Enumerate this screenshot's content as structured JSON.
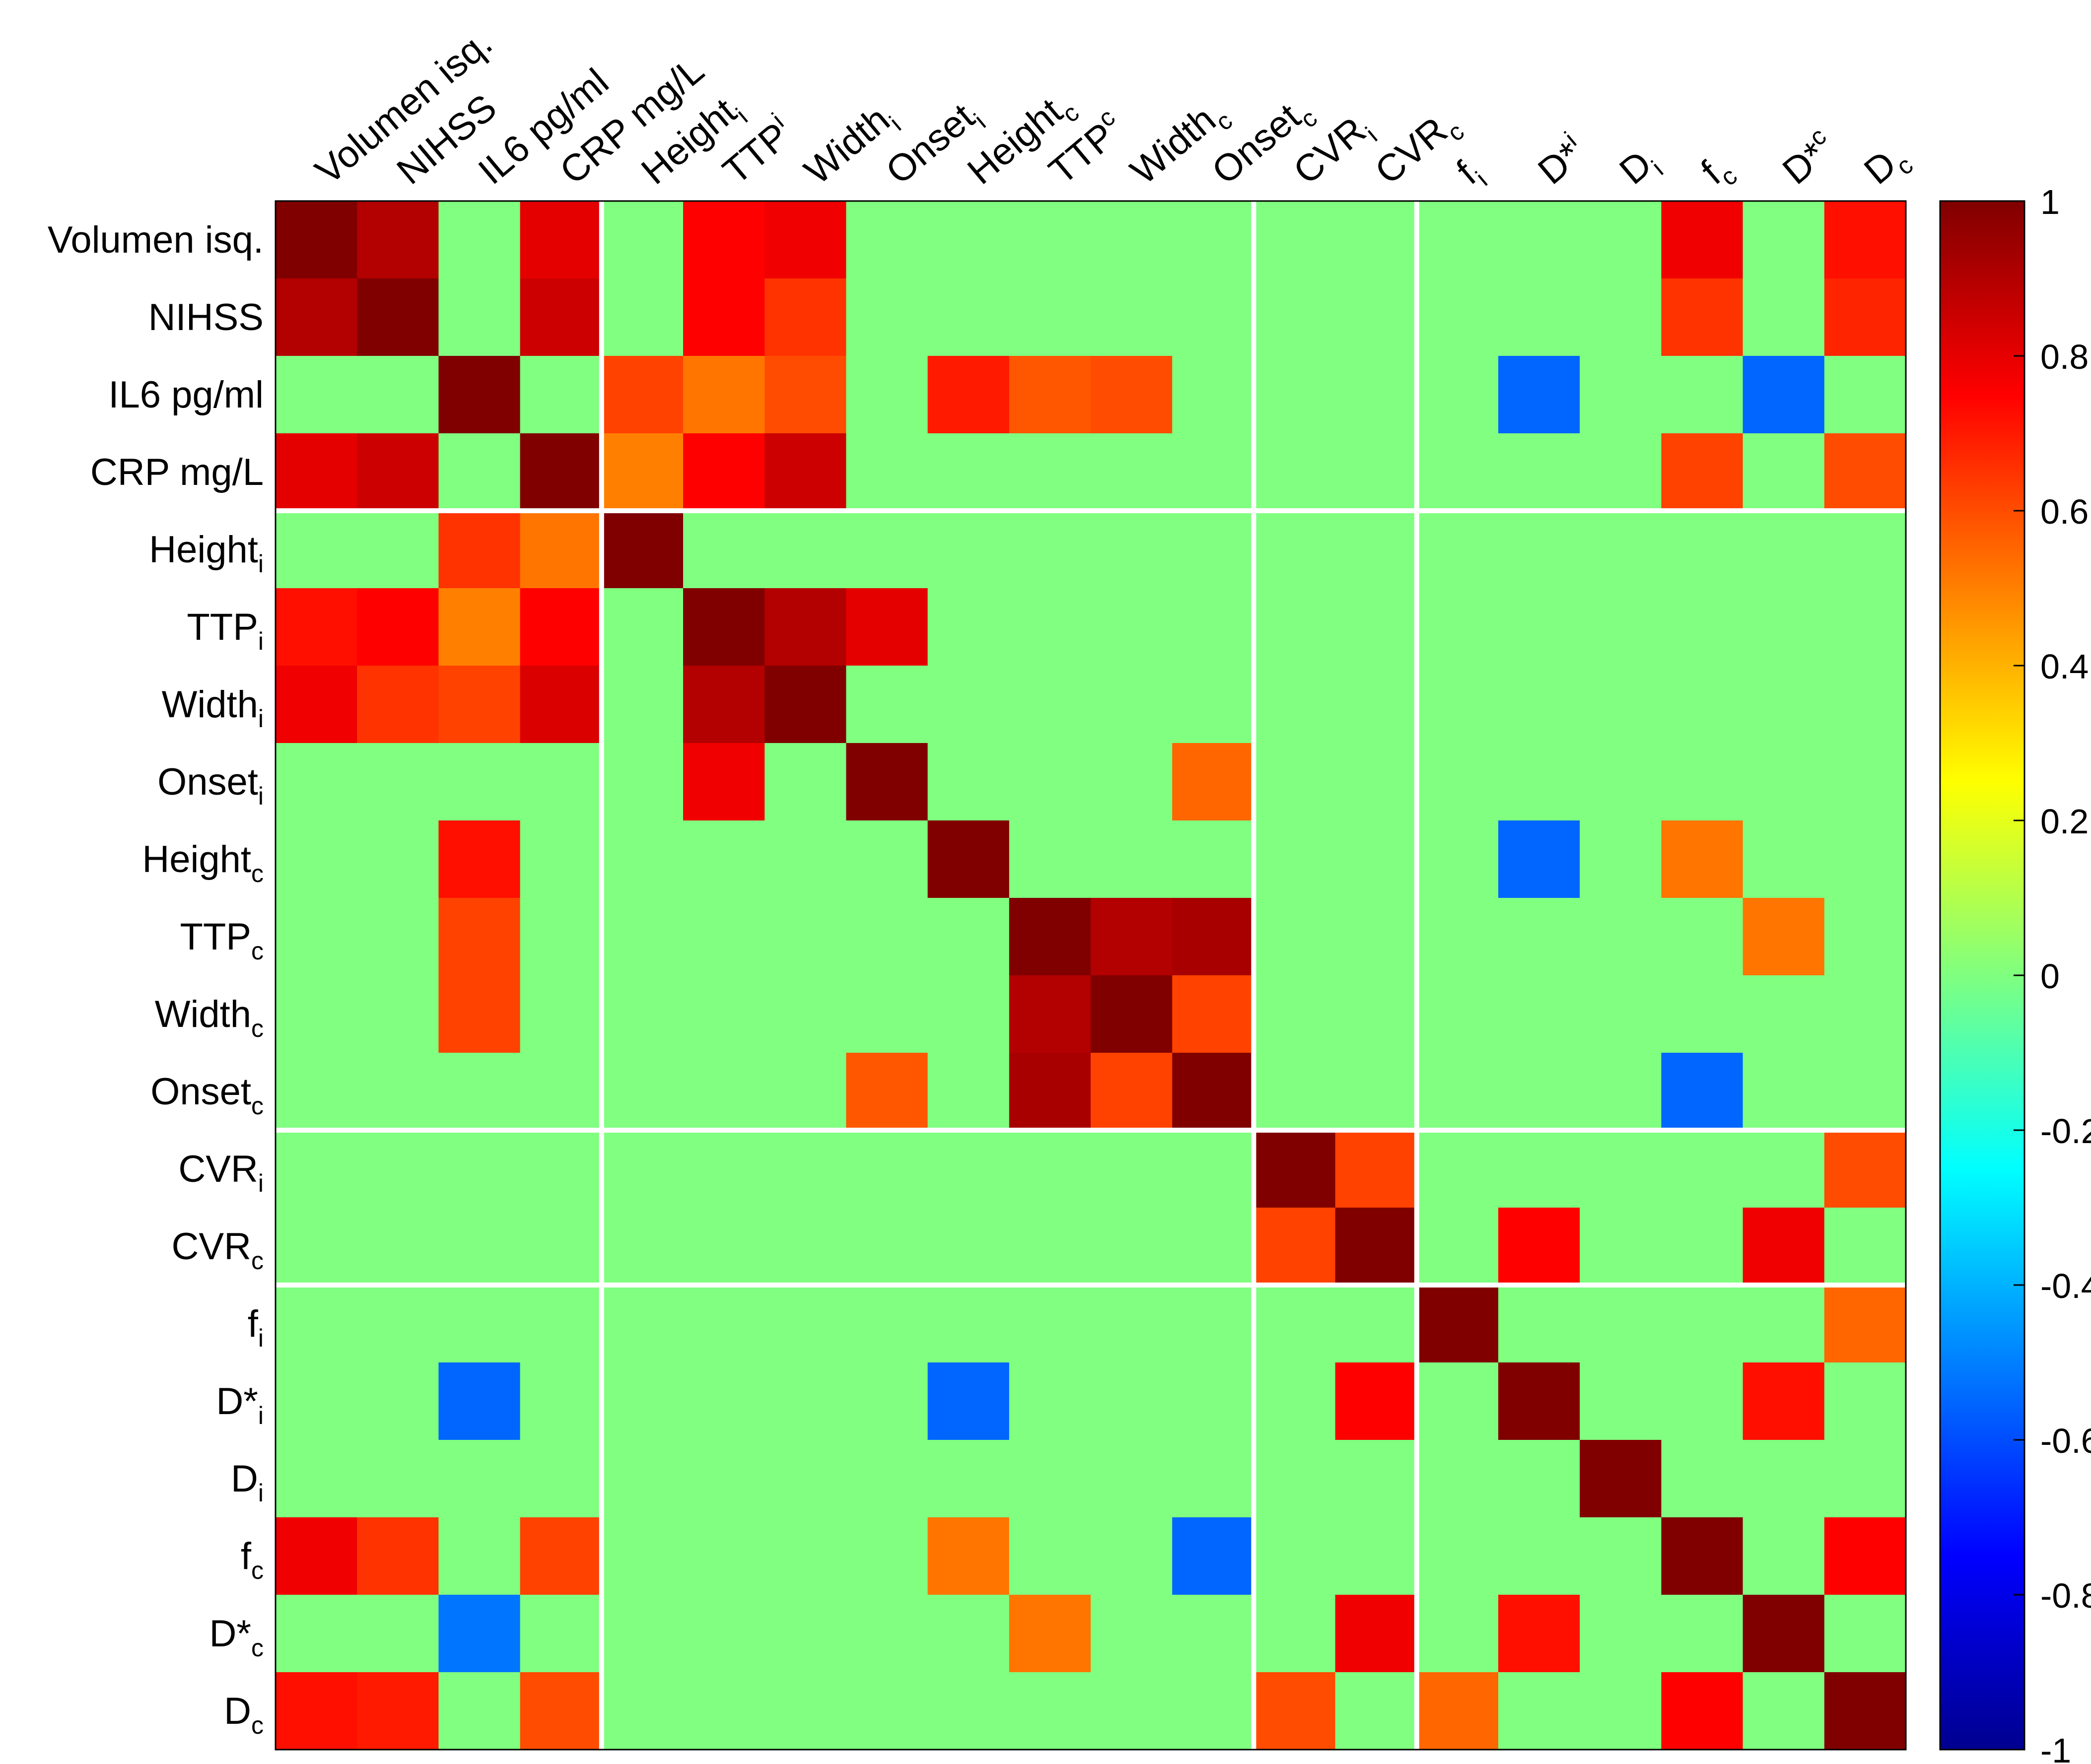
{
  "chart_data": {
    "type": "heatmap",
    "title": "",
    "xlabel": "",
    "ylabel": "",
    "labels": [
      {
        "base": "Volumen isq.",
        "sub": "",
        "sup": ""
      },
      {
        "base": "NIHSS",
        "sub": "",
        "sup": ""
      },
      {
        "base": "IL6 pg/ml",
        "sub": "",
        "sup": ""
      },
      {
        "base": "CRP mg/L",
        "sub": "",
        "sup": ""
      },
      {
        "base": "Height",
        "sub": "i",
        "sup": ""
      },
      {
        "base": "TTP",
        "sub": "i",
        "sup": ""
      },
      {
        "base": "Width",
        "sub": "i",
        "sup": ""
      },
      {
        "base": "Onset",
        "sub": "i",
        "sup": ""
      },
      {
        "base": "Height",
        "sub": "c",
        "sup": ""
      },
      {
        "base": "TTP",
        "sub": "c",
        "sup": ""
      },
      {
        "base": "Width",
        "sub": "c",
        "sup": ""
      },
      {
        "base": "Onset",
        "sub": "c",
        "sup": ""
      },
      {
        "base": "CVR",
        "sub": "i",
        "sup": ""
      },
      {
        "base": "CVR",
        "sub": "c",
        "sup": ""
      },
      {
        "base": "f",
        "sub": "i",
        "sup": ""
      },
      {
        "base": "D*",
        "sub": "i",
        "sup": ""
      },
      {
        "base": "D",
        "sub": "i",
        "sup": ""
      },
      {
        "base": "f",
        "sub": "c",
        "sup": ""
      },
      {
        "base": "D*",
        "sub": "c",
        "sup": ""
      },
      {
        "base": "D",
        "sub": "c",
        "sup": ""
      }
    ],
    "column_labels": [
      {
        "base": "Volumen isq.",
        "sub": "",
        "sup": ""
      },
      {
        "base": "NIHSS",
        "sub": "",
        "sup": ""
      },
      {
        "base": "IL6 pg/ml",
        "sub": "",
        "sup": ""
      },
      {
        "base": "CRP mg/L",
        "sub": "",
        "sup": ""
      },
      {
        "base": "Height",
        "sub": "i",
        "sup": ""
      },
      {
        "base": "TTP",
        "sub": "",
        "sup": "i"
      },
      {
        "base": "Width",
        "sub": "i",
        "sup": ""
      },
      {
        "base": "Onset",
        "sub": "i",
        "sup": ""
      },
      {
        "base": "Height",
        "sub": "c",
        "sup": ""
      },
      {
        "base": "TTP",
        "sub": "",
        "sup": "c"
      },
      {
        "base": "Width",
        "sub": "c",
        "sup": ""
      },
      {
        "base": "Onset",
        "sub": "c",
        "sup": ""
      },
      {
        "base": "CVR",
        "sub": "i",
        "sup": ""
      },
      {
        "base": "CVR",
        "sub": "c",
        "sup": ""
      },
      {
        "base": "f",
        "sub": "i",
        "sup": ""
      },
      {
        "base": "D*",
        "sub": "",
        "sup": "i"
      },
      {
        "base": "D",
        "sub": "i",
        "sup": ""
      },
      {
        "base": "f",
        "sub": "c",
        "sup": ""
      },
      {
        "base": "D*",
        "sub": "",
        "sup": "c"
      },
      {
        "base": "D",
        "sub": "c",
        "sup": ""
      }
    ],
    "values": [
      [
        1,
        0.9,
        0,
        0.8,
        0,
        0.75,
        0.78,
        0,
        0,
        0,
        0,
        0,
        0,
        0,
        0,
        0,
        0,
        0.78,
        0,
        0.72
      ],
      [
        0.9,
        1,
        0,
        0.85,
        0,
        0.75,
        0.65,
        0,
        0,
        0,
        0,
        0,
        0,
        0,
        0,
        0,
        0,
        0.65,
        0,
        0.68
      ],
      [
        0,
        0,
        1,
        0,
        0.62,
        0.52,
        0.6,
        0,
        0.7,
        0.58,
        0.6,
        0,
        0,
        0,
        0,
        -0.55,
        0,
        0,
        -0.55,
        0
      ],
      [
        0.8,
        0.85,
        0,
        1,
        0.5,
        0.75,
        0.85,
        0,
        0,
        0,
        0,
        0,
        0,
        0,
        0,
        0,
        0,
        0.62,
        0,
        0.6
      ],
      [
        0,
        0,
        0.65,
        0.52,
        1,
        0,
        0,
        0,
        0,
        0,
        0,
        0,
        0,
        0,
        0,
        0,
        0,
        0,
        0,
        0
      ],
      [
        0.72,
        0.75,
        0.5,
        0.75,
        0,
        1,
        0.9,
        0.8,
        0,
        0,
        0,
        0,
        0,
        0,
        0,
        0,
        0,
        0,
        0,
        0
      ],
      [
        0.78,
        0.65,
        0.62,
        0.82,
        0,
        0.9,
        1,
        0,
        0,
        0,
        0,
        0,
        0,
        0,
        0,
        0,
        0,
        0,
        0,
        0
      ],
      [
        0,
        0,
        0,
        0,
        0,
        0.78,
        0,
        1,
        0,
        0,
        0,
        0.55,
        0,
        0,
        0,
        0,
        0,
        0,
        0,
        0
      ],
      [
        0,
        0,
        0.72,
        0,
        0,
        0,
        0,
        0,
        1,
        0,
        0,
        0,
        0,
        0,
        0,
        -0.55,
        0,
        0.52,
        0,
        0
      ],
      [
        0,
        0,
        0.62,
        0,
        0,
        0,
        0,
        0,
        0,
        1,
        0.9,
        0.92,
        0,
        0,
        0,
        0,
        0,
        0,
        0.52,
        0
      ],
      [
        0,
        0,
        0.62,
        0,
        0,
        0,
        0,
        0,
        0,
        0.9,
        1,
        0.62,
        0,
        0,
        0,
        0,
        0,
        0,
        0,
        0
      ],
      [
        0,
        0,
        0,
        0,
        0,
        0,
        0,
        0.58,
        0,
        0.92,
        0.62,
        1,
        0,
        0,
        0,
        0,
        0,
        -0.55,
        0,
        0
      ],
      [
        0,
        0,
        0,
        0,
        0,
        0,
        0,
        0,
        0,
        0,
        0,
        0,
        1,
        0.62,
        0,
        0,
        0,
        0,
        0,
        0.6
      ],
      [
        0,
        0,
        0,
        0,
        0,
        0,
        0,
        0,
        0,
        0,
        0,
        0,
        0.62,
        1,
        0,
        0.75,
        0,
        0,
        0.78,
        0
      ],
      [
        0,
        0,
        0,
        0,
        0,
        0,
        0,
        0,
        0,
        0,
        0,
        0,
        0,
        0,
        1,
        0,
        0,
        0,
        0,
        0.55
      ],
      [
        0,
        0,
        -0.55,
        0,
        0,
        0,
        0,
        0,
        -0.55,
        0,
        0,
        0,
        0,
        0.75,
        0,
        1,
        0,
        0,
        0.72,
        0
      ],
      [
        0,
        0,
        0,
        0,
        0,
        0,
        0,
        0,
        0,
        0,
        0,
        0,
        0,
        0,
        0,
        0,
        1,
        0,
        0,
        0
      ],
      [
        0.78,
        0.65,
        0,
        0.62,
        0,
        0,
        0,
        0,
        0.52,
        0,
        0,
        -0.55,
        0,
        0,
        0,
        0,
        0,
        1,
        0,
        0.75
      ],
      [
        0,
        0,
        -0.52,
        0,
        0,
        0,
        0,
        0,
        0,
        0.52,
        0,
        0,
        0,
        0.78,
        0,
        0.72,
        0,
        0,
        1,
        0
      ],
      [
        0.72,
        0.7,
        0,
        0.6,
        0,
        0,
        0,
        0,
        0,
        0,
        0,
        0,
        0.6,
        0,
        0.55,
        0,
        0,
        0.75,
        0,
        1
      ]
    ],
    "group_separators_after_index": [
      3,
      11,
      13
    ],
    "colorbar": {
      "min": -1,
      "max": 1,
      "ticks": [
        1,
        0.8,
        0.6,
        0.4,
        0.2,
        0,
        -0.2,
        -0.4,
        -0.6,
        -0.8,
        -1
      ],
      "tick_labels": [
        "1",
        "0.8",
        "0.6",
        "0.4",
        "0.2",
        "0",
        "-0.2",
        "-0.4",
        "-0.6",
        "-0.8",
        "-1"
      ],
      "colormap": "jet"
    }
  }
}
